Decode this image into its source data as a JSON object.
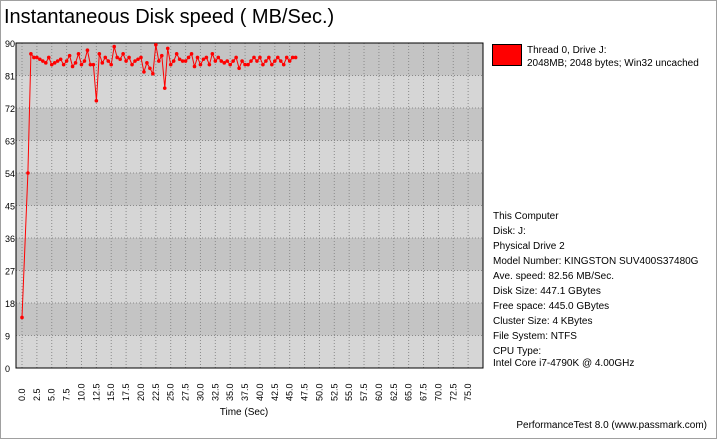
{
  "chart_data": {
    "type": "line",
    "title": "Instantaneous Disk speed ( MB/Sec.)",
    "xlabel": "Time (Sec)",
    "ylabel": "",
    "xlim": [
      0,
      77.5
    ],
    "ylim": [
      0,
      90
    ],
    "x_ticks": [
      "0.0",
      "2.5",
      "5.0",
      "7.5",
      "10.0",
      "12.5",
      "15.0",
      "17.5",
      "20.0",
      "22.5",
      "25.0",
      "27.5",
      "30.0",
      "32.5",
      "35.0",
      "37.5",
      "40.0",
      "42.5",
      "45.0",
      "47.5",
      "50.0",
      "52.5",
      "55.0",
      "57.5",
      "60.0",
      "62.5",
      "65.0",
      "67.5",
      "70.0",
      "72.5",
      "75.0"
    ],
    "y_ticks": [
      "0",
      "9",
      "18",
      "27",
      "36",
      "45",
      "54",
      "63",
      "72",
      "81",
      "90"
    ],
    "grid": true,
    "series": [
      {
        "name": "Thread 0, Drive J:",
        "color": "#ff0000",
        "x": [
          0,
          1,
          1.5,
          2,
          2.5,
          3,
          3.5,
          4,
          4.5,
          5,
          5.5,
          6,
          6.5,
          7,
          7.5,
          8,
          8.5,
          9,
          9.5,
          10,
          10.5,
          11,
          11.5,
          12,
          12.5,
          13,
          13.5,
          14,
          14.5,
          15,
          15.5,
          16,
          16.5,
          17,
          17.5,
          18,
          18.5,
          19,
          19.5,
          20,
          20.5,
          21,
          21.5,
          22,
          22.5,
          23,
          23.5,
          24,
          24.5,
          25,
          25.5,
          26,
          26.5,
          27,
          27.5,
          28,
          28.5,
          29,
          29.5,
          30,
          30.5,
          31,
          31.5,
          32,
          32.5,
          33,
          33.5,
          34,
          34.5,
          35,
          35.5,
          36,
          36.5,
          37,
          37.5,
          38,
          38.5,
          39,
          39.5,
          40,
          40.5,
          41,
          41.5,
          42,
          42.5,
          43,
          43.5,
          44,
          44.5,
          45,
          45.5,
          46
        ],
        "y": [
          14,
          54,
          87,
          86,
          86,
          85.5,
          85,
          84.5,
          86,
          84,
          84.5,
          85,
          85.5,
          84,
          85,
          86.5,
          83.5,
          84.5,
          87,
          84,
          85,
          88,
          84,
          84,
          74,
          87,
          84.5,
          86,
          85,
          84,
          89,
          86,
          85.5,
          87,
          85,
          86,
          84,
          85,
          85.5,
          86,
          82,
          84.5,
          83,
          81.5,
          89.5,
          85,
          86.5,
          77.5,
          88.5,
          84,
          85,
          87,
          85.5,
          85,
          85,
          86,
          87,
          83.5,
          86,
          84,
          85.5,
          86,
          84,
          87,
          85,
          86,
          85,
          84.5,
          85,
          84,
          85,
          86,
          83,
          85,
          84,
          84,
          85,
          86,
          85,
          86,
          84,
          85,
          86,
          84,
          85,
          86,
          85,
          84,
          86,
          85,
          86,
          86
        ]
      }
    ]
  },
  "legend": {
    "line1": "Thread 0, Drive J:",
    "line2": "2048MB; 2048 bytes; Win32 uncached"
  },
  "info": [
    "This Computer",
    "Disk: J:",
    "Physical Drive 2",
    "Model Number: KINGSTON SUV400S37480G",
    "Ave. speed: 82.56 MB/Sec.",
    "Disk Size: 447.1 GBytes",
    "Free space: 445.0 GBytes",
    "Cluster Size: 4 KBytes",
    "File System: NTFS",
    "CPU Type:",
    "Intel Core i7-4790K @ 4.00GHz"
  ],
  "footer": "PerformanceTest 8.0 (www.passmark.com)"
}
